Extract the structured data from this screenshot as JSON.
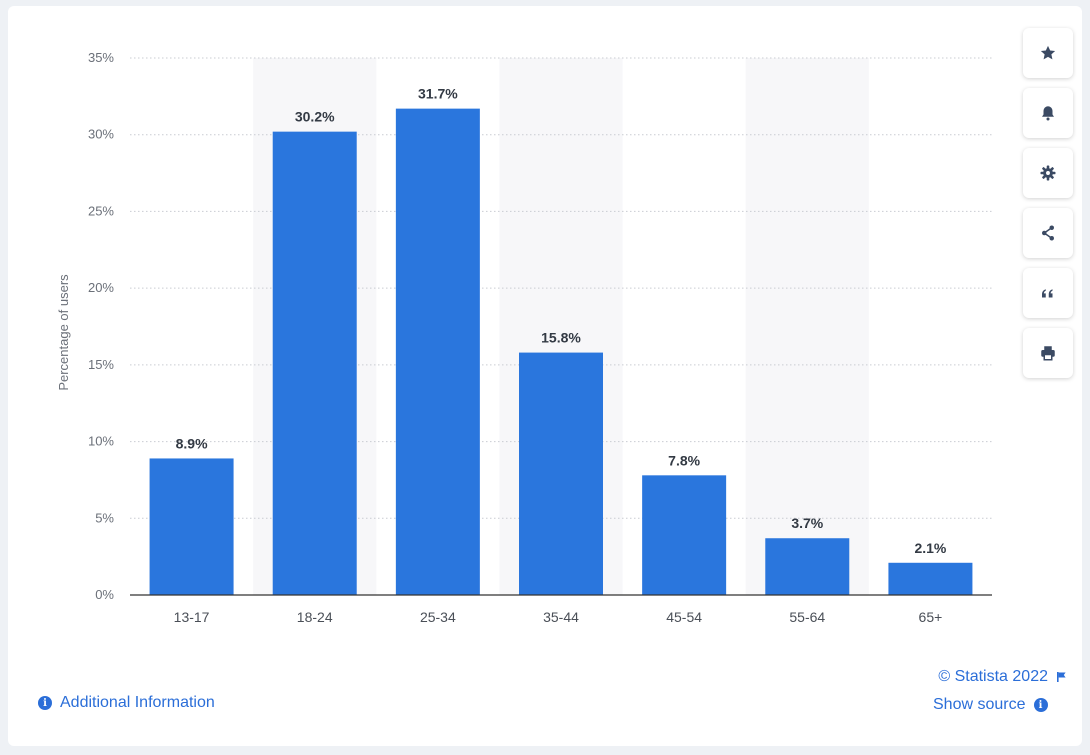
{
  "chart_data": {
    "type": "bar",
    "categories": [
      "13-17",
      "18-24",
      "25-34",
      "35-44",
      "45-54",
      "55-64",
      "65+"
    ],
    "values": [
      8.9,
      30.2,
      31.7,
      15.8,
      7.8,
      3.7,
      2.1
    ],
    "value_labels": [
      "8.9%",
      "30.2%",
      "31.7%",
      "15.8%",
      "7.8%",
      "3.7%",
      "2.1%"
    ],
    "ylabel": "Percentage of users",
    "ylim": [
      0,
      35
    ],
    "yticks": [
      0,
      5,
      10,
      15,
      20,
      25,
      30,
      35
    ],
    "ytick_labels": [
      "0%",
      "5%",
      "10%",
      "15%",
      "20%",
      "25%",
      "30%",
      "35%"
    ],
    "grid": true,
    "bar_color": "#2a76dd",
    "alternating_band_color": "#f7f7f9"
  },
  "toolbar": {
    "buttons": [
      {
        "icon": "star-icon",
        "name": "favorite-button"
      },
      {
        "icon": "bell-icon",
        "name": "notification-button"
      },
      {
        "icon": "gear-icon",
        "name": "settings-button"
      },
      {
        "icon": "share-icon",
        "name": "share-button"
      },
      {
        "icon": "quote-icon",
        "name": "cite-button"
      },
      {
        "icon": "print-icon",
        "name": "print-button"
      }
    ]
  },
  "footer": {
    "copyright": "© Statista 2022",
    "show_source": "Show source",
    "additional_info": "Additional Information"
  },
  "colors": {
    "accent": "#2b6ed8",
    "icon": "#3b4a63"
  }
}
